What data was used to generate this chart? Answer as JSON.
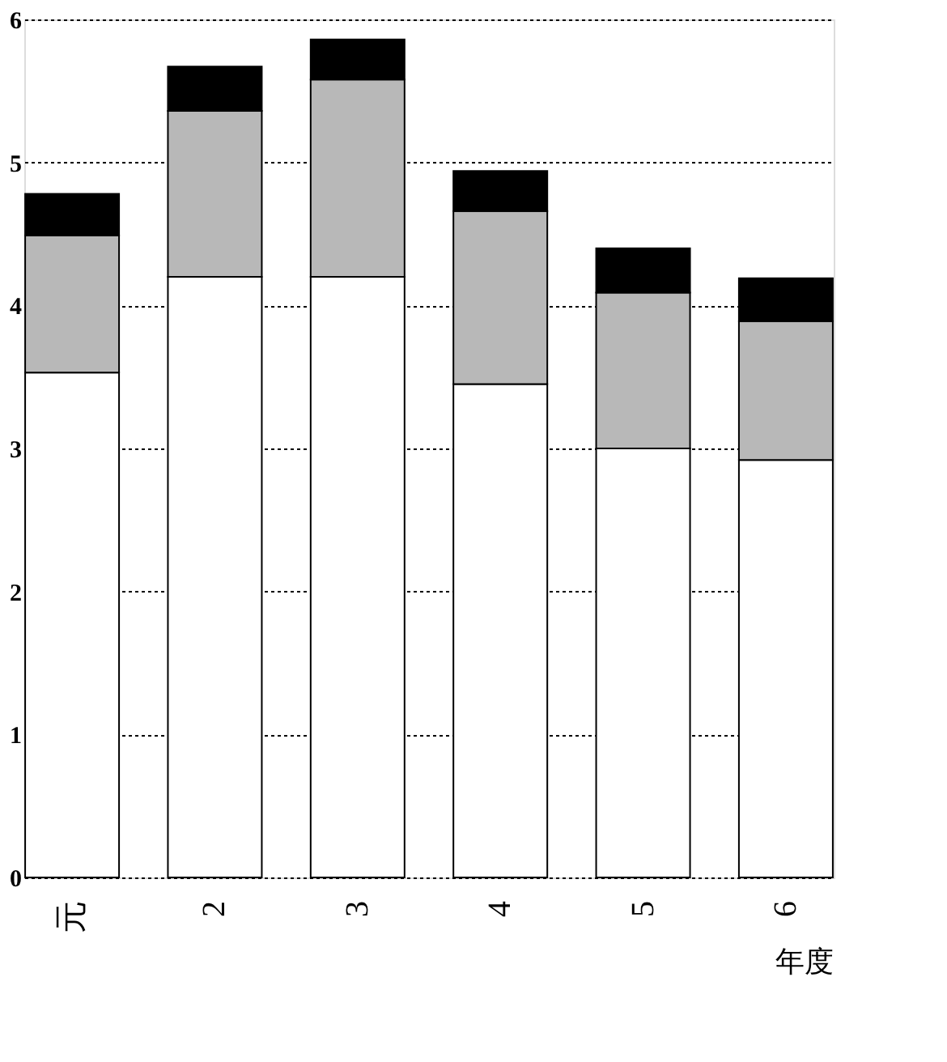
{
  "chart_data": {
    "type": "bar",
    "stacked": true,
    "xlabel": "年度",
    "categories": [
      "元",
      "2",
      "3",
      "4",
      "5",
      "6"
    ],
    "series": [
      {
        "color": "#ffffff",
        "values": [
          3.53,
          4.2,
          4.2,
          3.45,
          3.0,
          2.92
        ]
      },
      {
        "color": "#b8b8b8",
        "values": [
          0.96,
          1.16,
          1.38,
          1.21,
          1.09,
          0.97
        ]
      },
      {
        "color": "#000000",
        "values": [
          0.29,
          0.31,
          0.28,
          0.28,
          0.31,
          0.3
        ]
      }
    ],
    "ylim": [
      0,
      6
    ],
    "yticks": [
      0,
      1,
      2,
      3,
      4,
      5,
      6
    ],
    "grid": "y",
    "legend": false
  }
}
